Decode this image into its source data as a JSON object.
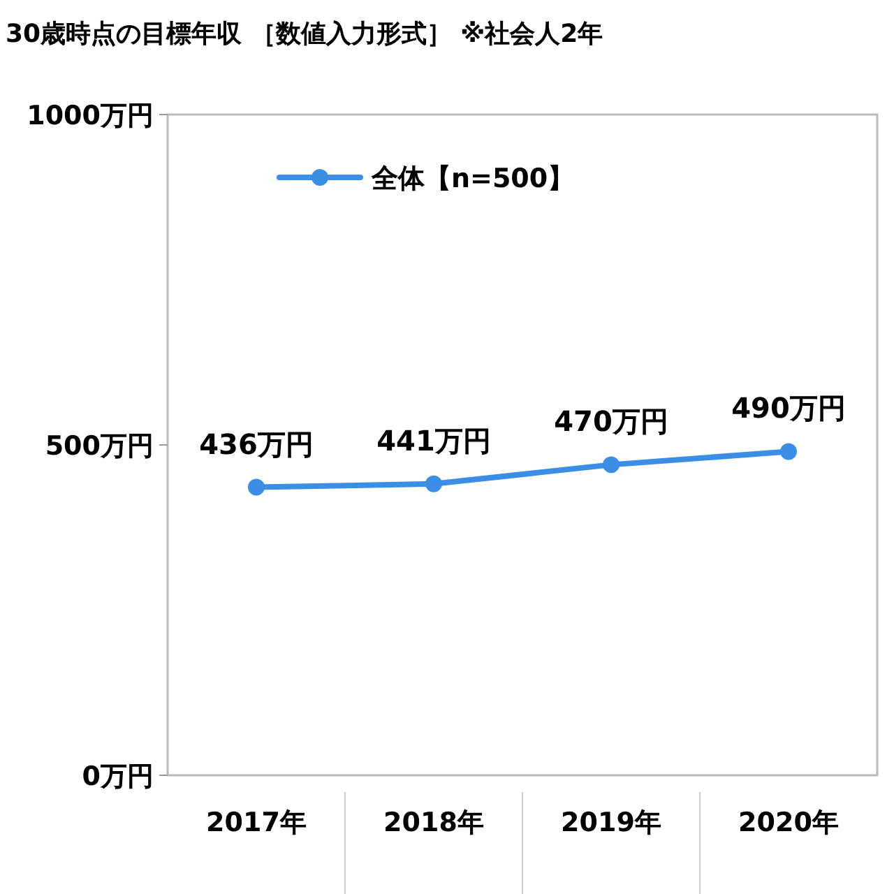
{
  "chart_data": {
    "type": "line",
    "title": "30歳時点の目標年収 ［数値入力形式］ ※社会人2年",
    "categories": [
      "2017年",
      "2018年",
      "2019年",
      "2020年"
    ],
    "series": [
      {
        "name": "全体【n=500】",
        "color": "#3a8ee6",
        "values": [
          436,
          441,
          470,
          490
        ],
        "value_labels": [
          "436万円",
          "441万円",
          "470万円",
          "490万円"
        ]
      }
    ],
    "ylim": [
      0,
      1000
    ],
    "yticks": [
      {
        "value": 0,
        "label": "0万円"
      },
      {
        "value": 500,
        "label": "500万円"
      },
      {
        "value": 1000,
        "label": "1000万円"
      }
    ],
    "grid": false,
    "legend": "top left",
    "marker": "circle",
    "line_style": "solid"
  }
}
